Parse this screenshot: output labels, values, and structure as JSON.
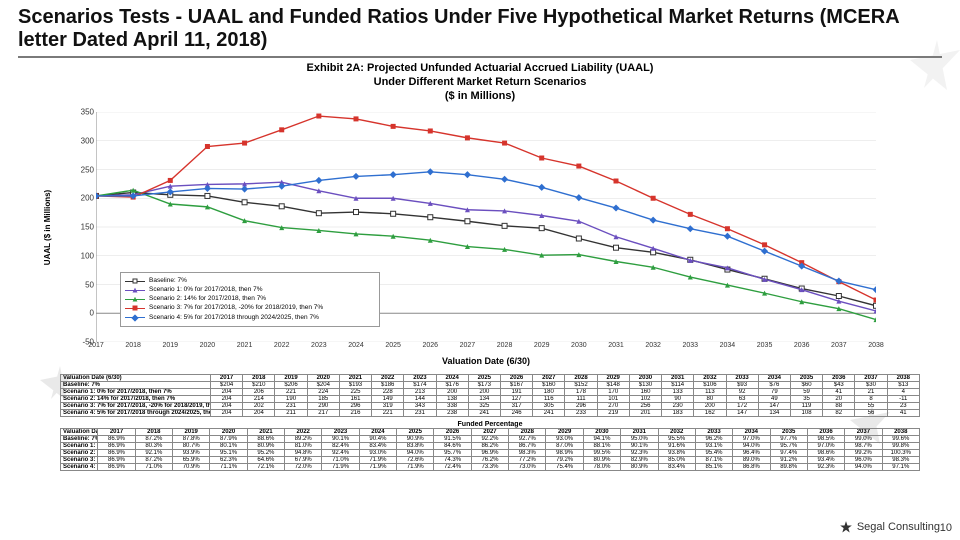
{
  "title": "Scenarios Tests - UAAL and Funded Ratios Under Five Hypothetical Market Returns (MCERA letter Dated April 11, 2018)",
  "footer": {
    "brand": "Segal Consulting",
    "page": "10"
  },
  "chart": {
    "type": "line",
    "title_line1": "Exhibit 2A: Projected Unfunded Actuarial Accrued Liability (UAAL)",
    "title_line2": "Under Different Market Return Scenarios",
    "title_line3": "($ in Millions)",
    "x_label": "Valuation Date (6/30)",
    "y_label": "UAAL ($ in Millions)",
    "title_fontsize": 11,
    "label_fontsize": 9,
    "background_color": "#ffffff",
    "grid_color": "#dcdcdc",
    "axis_color": "#888888",
    "ylim": [
      -50,
      350
    ],
    "ytick_step": 50,
    "yticks": [
      -50,
      0,
      50,
      100,
      150,
      200,
      250,
      300,
      350
    ],
    "years": [
      2017,
      2018,
      2019,
      2020,
      2021,
      2022,
      2023,
      2024,
      2025,
      2026,
      2027,
      2028,
      2029,
      2030,
      2031,
      2032,
      2033,
      2034,
      2035,
      2036,
      2037,
      2038
    ],
    "line_width": 1.4,
    "marker_size": 5,
    "series": [
      {
        "name": "Baseline: 7%",
        "label": "Baseline: 7%",
        "color": "#333333",
        "marker": "square-open",
        "values": [
          204,
          210,
          206,
          204,
          193,
          186,
          174,
          176,
          173,
          167,
          160,
          152,
          148,
          130,
          114,
          106,
          93,
          76,
          60,
          43,
          30,
          13
        ]
      },
      {
        "name": "Scenario 1",
        "label": "Scenario 1: 0% for 2017/2018, then 7%",
        "color": "#6b4fbf",
        "marker": "triangle",
        "values": [
          204,
          206,
          221,
          224,
          225,
          228,
          213,
          200,
          200,
          191,
          180,
          178,
          170,
          160,
          133,
          113,
          92,
          79,
          59,
          41,
          21,
          4
        ]
      },
      {
        "name": "Scenario 2",
        "label": "Scenario 2: 14% for 2017/2018, then 7%",
        "color": "#2e9e3f",
        "marker": "triangle",
        "values": [
          204,
          214,
          190,
          185,
          161,
          149,
          144,
          138,
          134,
          127,
          116,
          111,
          101,
          102,
          90,
          80,
          63,
          49,
          35,
          20,
          8,
          -11
        ]
      },
      {
        "name": "Scenario 3",
        "label": "Scenario 3: 7% for 2017/2018, -20% for 2018/2019, then 7%",
        "color": "#d6342c",
        "marker": "square",
        "values": [
          204,
          202,
          231,
          290,
          296,
          319,
          343,
          338,
          325,
          317,
          305,
          296,
          270,
          256,
          230,
          200,
          172,
          147,
          119,
          88,
          55,
          23
        ]
      },
      {
        "name": "Scenario 4",
        "label": "Scenario 4: 5% for 2017/2018 through 2024/2025, then 7%",
        "color": "#2f6fd0",
        "marker": "diamond",
        "values": [
          204,
          204,
          211,
          217,
          216,
          221,
          231,
          238,
          241,
          246,
          241,
          233,
          219,
          201,
          183,
          162,
          147,
          134,
          108,
          82,
          56,
          41
        ]
      }
    ]
  },
  "table_uaal": {
    "row_header": "Valuation Date (6/30)",
    "years": [
      2017,
      2018,
      2019,
      2020,
      2021,
      2022,
      2023,
      2024,
      2025,
      2026,
      2027,
      2028,
      2029,
      2030,
      2031,
      2032,
      2033,
      2034,
      2035,
      2036,
      2037,
      2038
    ],
    "rows": [
      {
        "label": "Baseline: 7%",
        "cells": [
          "$204",
          "$210",
          "$206",
          "$204",
          "$193",
          "$186",
          "$174",
          "$176",
          "$173",
          "$167",
          "$160",
          "$152",
          "$148",
          "$130",
          "$114",
          "$106",
          "$93",
          "$76",
          "$60",
          "$43",
          "$30",
          "$13"
        ]
      },
      {
        "label": "Scenario 1: 0% for 2017/2018, then 7%",
        "cells": [
          204,
          206,
          221,
          224,
          225,
          228,
          213,
          200,
          200,
          191,
          180,
          178,
          "170",
          "160",
          "133",
          "113",
          "92",
          "79",
          "59",
          "41",
          "21",
          "4"
        ]
      },
      {
        "label": "Scenario 2: 14% for 2017/2018, then 7%",
        "cells": [
          204,
          214,
          190,
          185,
          161,
          149,
          144,
          138,
          134,
          127,
          116,
          111,
          101,
          102,
          90,
          80,
          63,
          49,
          35,
          20,
          8,
          "-11"
        ]
      },
      {
        "label": "Scenario 3: 7% for 2017/2018, -20% for 2018/2019, then 7%",
        "cells": [
          204,
          202,
          231,
          290,
          296,
          319,
          343,
          338,
          325,
          317,
          305,
          296,
          270,
          256,
          230,
          200,
          172,
          147,
          119,
          88,
          55,
          23
        ]
      },
      {
        "label": "Scenario 4: 5% for 2017/2018 through 2024/2025, then 7%",
        "cells": [
          204,
          204,
          211,
          217,
          216,
          221,
          231,
          238,
          241,
          246,
          241,
          233,
          219,
          201,
          183,
          162,
          147,
          134,
          108,
          82,
          56,
          41
        ]
      }
    ]
  },
  "table_funded": {
    "title": "Funded Percentage",
    "row_header": "Valuation Date (6/30)",
    "years": [
      2017,
      2018,
      2019,
      2020,
      2021,
      2022,
      2023,
      2024,
      2025,
      2026,
      2027,
      2028,
      2029,
      2030,
      2031,
      2032,
      2033,
      2034,
      2035,
      2036,
      2037,
      2038
    ],
    "rows": [
      {
        "label": "Baseline: 7%",
        "cells": [
          "86.9%",
          "87.2%",
          "87.8%",
          "87.9%",
          "88.6%",
          "89.2%",
          "90.1%",
          "90.4%",
          "90.9%",
          "91.5%",
          "92.2%",
          "92.7%",
          "93.0%",
          "94.1%",
          "95.0%",
          "95.5%",
          "96.2%",
          "97.0%",
          "97.7%",
          "98.5%",
          "99.0%",
          "99.6%"
        ]
      },
      {
        "label": "Scenario 1: 0% for 2017/2018, then 7%",
        "cells": [
          "86.9%",
          "80.3%",
          "80.7%",
          "80.1%",
          "80.9%",
          "81.0%",
          "82.4%",
          "83.4%",
          "83.8%",
          "84.6%",
          "86.2%",
          "86.7%",
          "87.0%",
          "88.1%",
          "90.1%",
          "91.6%",
          "93.1%",
          "94.0%",
          "95.7%",
          "97.0%",
          "98.7%",
          "99.8%"
        ]
      },
      {
        "label": "Scenario 2: 14% for 2017/2018, then 7%",
        "cells": [
          "86.9%",
          "92.1%",
          "93.9%",
          "95.1%",
          "95.2%",
          "94.8%",
          "92.4%",
          "93.0%",
          "94.0%",
          "95.7%",
          "96.9%",
          "98.3%",
          "98.9%",
          "99.5%",
          "92.3%",
          "93.8%",
          "95.4%",
          "96.4%",
          "97.4%",
          "98.6%",
          "99.2%",
          "100.3%"
        ]
      },
      {
        "label": "Scenario 3: 7% for 2017/2018, -20% for 2018/2019, then 7%",
        "cells": [
          "86.9%",
          "87.2%",
          "65.9%",
          "62.3%",
          "64.6%",
          "67.9%",
          "71.0%",
          "71.9%",
          "72.6%",
          "74.3%",
          "76.2%",
          "77.2%",
          "79.2%",
          "80.9%",
          "82.9%",
          "85.0%",
          "87.1%",
          "89.0%",
          "91.2%",
          "93.4%",
          "96.0%",
          "98.3%"
        ]
      },
      {
        "label": "Scenario 4: 5% for 2017/2018 through 2024/2025, then 7%",
        "cells": [
          "86.9%",
          "71.0%",
          "70.9%",
          "71.1%",
          "72.1%",
          "72.0%",
          "71.9%",
          "71.9%",
          "71.9%",
          "72.4%",
          "73.3%",
          "73.0%",
          "75.4%",
          "78.0%",
          "80.9%",
          "83.4%",
          "85.1%",
          "86.8%",
          "89.8%",
          "92.3%",
          "94.0%",
          "97.1%"
        ]
      }
    ]
  }
}
